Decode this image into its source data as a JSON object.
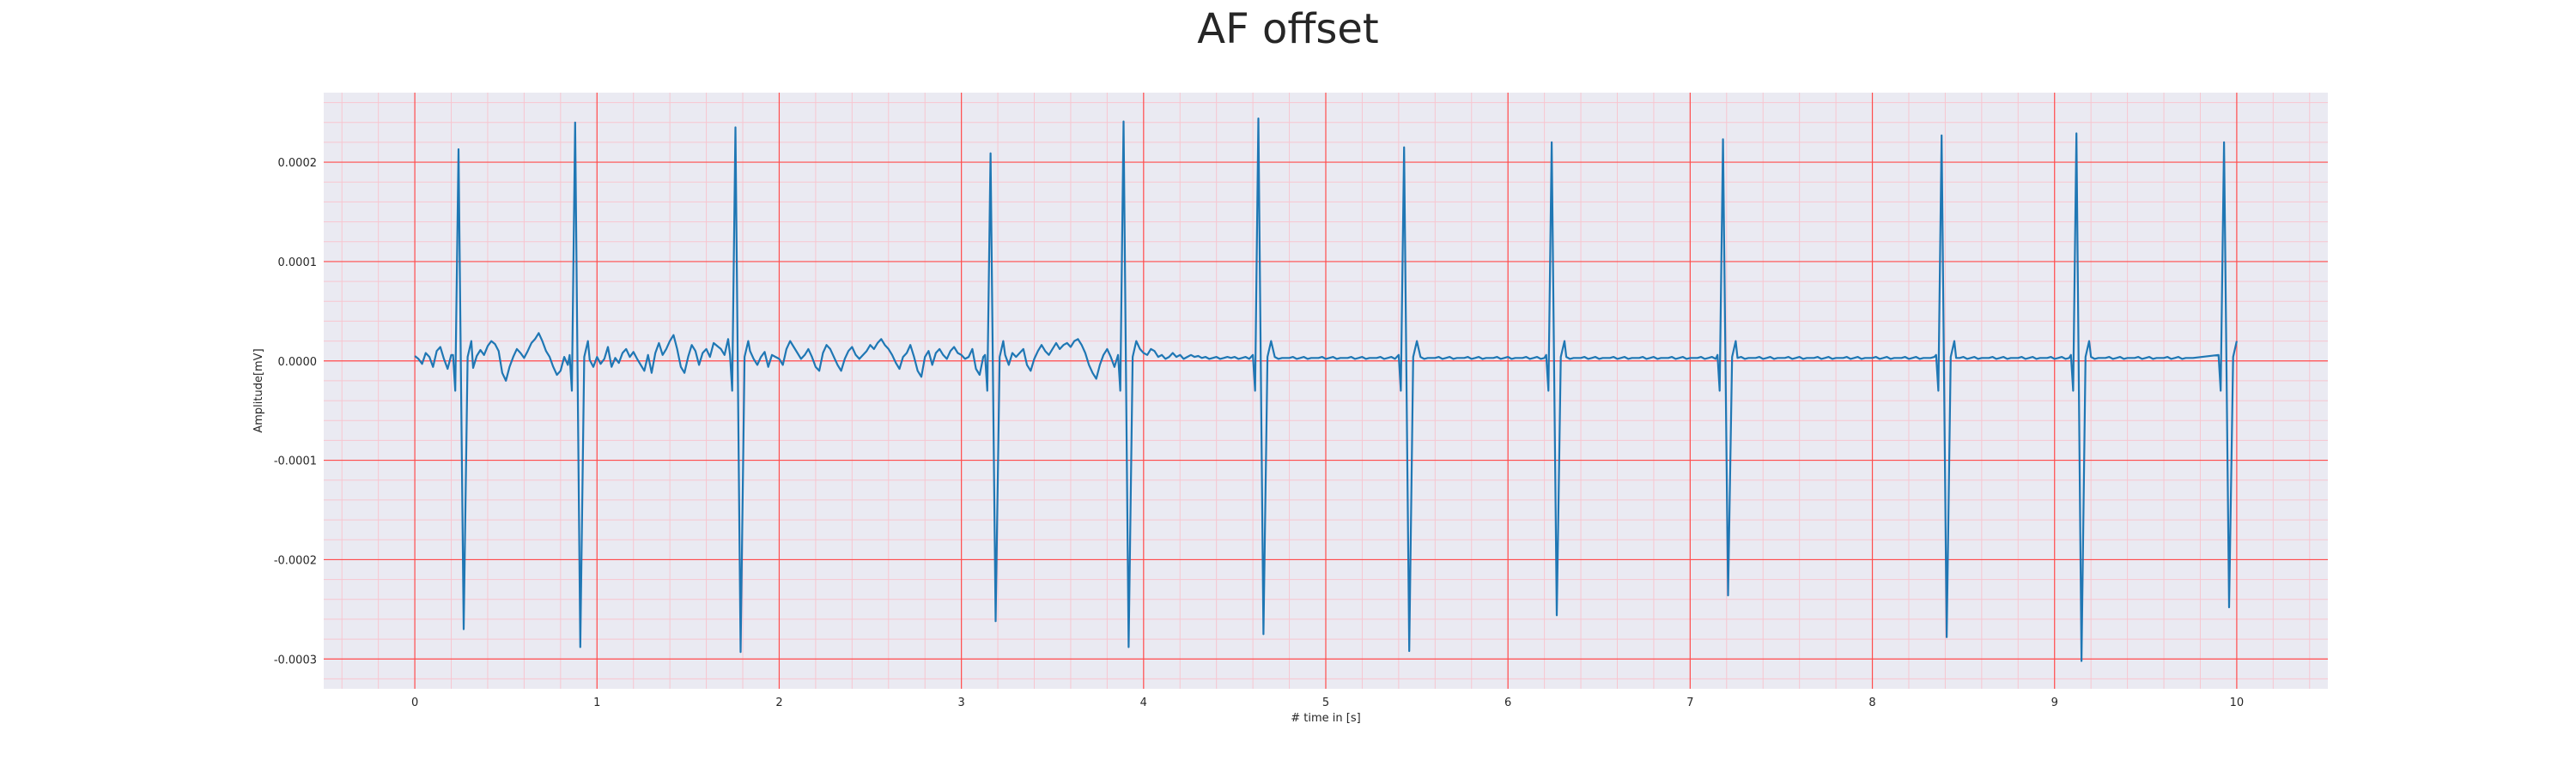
{
  "chart_data": {
    "type": "line",
    "title": "AF offset",
    "xlabel": "# time in [s]",
    "ylabel": "Amplitude[mV]",
    "xlim": [
      -0.5,
      10.5
    ],
    "ylim": [
      -0.00033,
      0.00027
    ],
    "x_ticks": [
      0,
      1,
      2,
      3,
      4,
      5,
      6,
      7,
      8,
      9,
      10
    ],
    "x_tick_labels": [
      "0",
      "1",
      "2",
      "3",
      "4",
      "5",
      "6",
      "7",
      "8",
      "9",
      "10"
    ],
    "y_ticks": [
      -0.0003,
      -0.0002,
      -0.0001,
      0.0,
      0.0001,
      0.0002
    ],
    "y_tick_labels": [
      "-0.0003",
      "-0.0002",
      "-0.0001",
      "0.0000",
      "0.0001",
      "0.0002"
    ],
    "grid": true,
    "minor_grid": true,
    "background_color": "#eaeaf2",
    "major_grid_color": "#ff4d4d",
    "minor_grid_color": "#f7c6d0",
    "series": [
      {
        "color": "#1f77b4",
        "sample_interval": 0.02,
        "x_start": 0.0,
        "beats": [
          {
            "t": 0.24,
            "peak": 0.000213,
            "trough": -0.00027
          },
          {
            "t": 0.88,
            "peak": 0.00024,
            "trough": -0.000288
          },
          {
            "t": 1.76,
            "peak": 0.000235,
            "trough": -0.000293
          },
          {
            "t": 3.16,
            "peak": 0.000209,
            "trough": -0.000262
          },
          {
            "t": 3.89,
            "peak": 0.000241,
            "trough": -0.000288
          },
          {
            "t": 4.63,
            "peak": 0.000244,
            "trough": -0.000275
          },
          {
            "t": 5.43,
            "peak": 0.000215,
            "trough": -0.000292
          },
          {
            "t": 6.24,
            "peak": 0.00022,
            "trough": -0.000256
          },
          {
            "t": 7.18,
            "peak": 0.000223,
            "trough": -0.000236
          },
          {
            "t": 8.38,
            "peak": 0.000227,
            "trough": -0.000278
          },
          {
            "t": 9.12,
            "peak": 0.000229,
            "trough": -0.000302
          },
          {
            "t": 9.93,
            "peak": 0.00022,
            "trough": -0.000248
          }
        ],
        "baseline": [
          5e-06,
          2e-06,
          -3e-06,
          8e-06,
          4e-06,
          -6e-06,
          1e-05,
          1.4e-05,
          2e-06,
          -8e-06,
          6e-06,
          1.2e-05,
          3e-06,
          -2e-06,
          9e-06,
          4e-06,
          -7e-06,
          5e-06,
          1.1e-05,
          6e-06,
          1.5e-05,
          2e-05,
          1.7e-05,
          1e-05,
          -1.2e-05,
          -2e-05,
          -6e-06,
          4e-06,
          1.2e-05,
          8e-06,
          3e-06,
          1e-05,
          1.8e-05,
          2.2e-05,
          2.8e-05,
          2e-05,
          1e-05,
          4e-06,
          -6e-06,
          -1.4e-05,
          -1e-05,
          4e-06,
          -4e-06,
          2e-06,
          -8e-06,
          6e-06,
          -2e-06,
          5e-06,
          1e-06,
          -6e-06,
          4e-06,
          -3e-06,
          2e-06,
          1.4e-05,
          -6e-06,
          3e-06,
          -2e-06,
          8e-06,
          1.2e-05,
          4e-06,
          9e-06,
          2e-06,
          -4e-06,
          -1e-05,
          6e-06,
          -1.2e-05,
          8e-06,
          1.8e-05,
          6e-06,
          1.2e-05,
          2e-05,
          2.6e-05,
          1.2e-05,
          -6e-06,
          -1.2e-05,
          4e-06,
          1.6e-05,
          1e-05,
          -4e-06,
          8e-06,
          1.2e-05,
          4e-06,
          1.8e-05,
          1.5e-05,
          1.2e-05,
          6e-06,
          2.2e-05,
          1e-05,
          -1e-05,
          -1.4e-05,
          4e-06,
          1.6e-05,
          1e-05,
          2e-06,
          -4e-06,
          4e-06,
          9e-06,
          -6e-06,
          6e-06,
          4e-06,
          2e-06,
          -4e-06,
          1.2e-05,
          2e-05,
          1.4e-05,
          8e-06,
          2e-06,
          6e-06,
          1.2e-05,
          4e-06,
          -6e-06,
          -1e-05,
          8e-06,
          1.6e-05,
          1.2e-05,
          4e-06,
          -4e-06,
          -1e-05,
          2e-06,
          1e-05,
          1.4e-05,
          6e-06,
          2e-06,
          6e-06,
          1e-05,
          1.6e-05,
          1.2e-05,
          1.8e-05,
          2.2e-05,
          1.6e-05,
          1.2e-05,
          6e-06,
          -2e-06,
          -8e-06,
          4e-06,
          8e-06,
          1.6e-05,
          4e-06,
          -1e-05,
          -1.6e-05,
          4e-06,
          1e-05,
          -4e-06,
          8e-06,
          1.2e-05,
          6e-06,
          2e-06,
          1e-05,
          1.4e-05,
          8e-06,
          6e-06,
          2e-06,
          4e-06,
          1.2e-05,
          -8e-06,
          -1.4e-05,
          4e-06,
          1e-05,
          1.4e-05,
          6e-06,
          4e-06,
          1e-05,
          6e-06,
          -4e-06,
          8e-06,
          4e-06,
          8e-06,
          1.2e-05,
          -4e-06,
          -1e-05,
          2e-06,
          1e-05,
          1.6e-05,
          1e-05,
          6e-06,
          1.2e-05,
          1.8e-05,
          1.2e-05,
          1.6e-05,
          1.8e-05,
          1.4e-05,
          2e-05,
          2.2e-05,
          1.6e-05,
          8e-06,
          -4e-06,
          -1.2e-05,
          -1.8e-05,
          -4e-06,
          6e-06,
          1.2e-05,
          4e-06,
          -6e-06,
          2e-06,
          1e-05,
          1.4e-05,
          8e-06,
          4e-06,
          1e-05,
          1.2e-05,
          8e-06,
          6e-06,
          1.2e-05,
          1e-05,
          4e-06,
          6e-06,
          2e-06,
          4e-06,
          8e-06,
          4e-06,
          6e-06,
          2e-06,
          4e-06,
          6e-06,
          4e-06,
          5e-06,
          3e-06,
          4e-06,
          2e-06,
          3e-06,
          4e-06,
          2e-06,
          3e-06,
          4e-06,
          3e-06,
          4e-06,
          2e-06,
          3e-06,
          4e-06,
          2e-06,
          3e-06,
          3e-06,
          3e-06,
          4e-06,
          2e-06,
          3e-06,
          4e-06,
          2e-06,
          3e-06,
          3e-06,
          3e-06,
          4e-06,
          2e-06,
          3e-06,
          4e-06,
          2e-06,
          3e-06,
          3e-06,
          3e-06,
          4e-06,
          2e-06,
          3e-06,
          4e-06,
          2e-06,
          3e-06,
          3e-06,
          3e-06,
          4e-06,
          2e-06,
          3e-06,
          4e-06,
          2e-06,
          3e-06,
          3e-06,
          3e-06,
          4e-06,
          2e-06,
          3e-06,
          4e-06,
          2e-06,
          3e-06,
          3e-06,
          3e-06,
          4e-06,
          2e-06,
          3e-06,
          4e-06,
          2e-06,
          3e-06,
          3e-06,
          3e-06,
          4e-06,
          2e-06,
          3e-06,
          4e-06,
          2e-06,
          3e-06,
          3e-06,
          3e-06,
          4e-06,
          2e-06,
          3e-06,
          4e-06,
          2e-06,
          3e-06,
          3e-06,
          3e-06,
          4e-06,
          2e-06,
          3e-06,
          4e-06,
          2e-06,
          3e-06,
          3e-06,
          3e-06,
          4e-06,
          2e-06,
          3e-06,
          4e-06,
          2e-06,
          3e-06,
          3e-06,
          3e-06,
          4e-06,
          2e-06,
          3e-06,
          4e-06,
          2e-06,
          3e-06,
          3e-06,
          3e-06,
          4e-06,
          2e-06,
          3e-06,
          4e-06,
          2e-06,
          3e-06,
          3e-06,
          3e-06,
          4e-06,
          2e-06,
          3e-06,
          4e-06,
          2e-06,
          3e-06,
          3e-06,
          3e-06,
          4e-06,
          2e-06,
          3e-06,
          4e-06,
          2e-06,
          3e-06,
          3e-06,
          3e-06,
          4e-06,
          2e-06,
          3e-06,
          4e-06,
          2e-06,
          3e-06,
          3e-06,
          3e-06,
          4e-06,
          2e-06,
          3e-06,
          4e-06,
          2e-06,
          3e-06,
          3e-06,
          3e-06,
          4e-06,
          2e-06,
          3e-06,
          4e-06,
          2e-06,
          3e-06,
          3e-06,
          3e-06,
          4e-06,
          2e-06,
          3e-06,
          4e-06,
          2e-06,
          3e-06,
          3e-06,
          3e-06,
          4e-06,
          2e-06,
          3e-06,
          4e-06,
          2e-06,
          3e-06,
          3e-06,
          3e-06,
          4e-06,
          2e-06,
          3e-06,
          4e-06,
          2e-06,
          3e-06,
          3e-06,
          3e-06,
          4e-06,
          2e-06,
          3e-06,
          4e-06,
          2e-06,
          3e-06,
          3e-06,
          3e-06,
          4e-06,
          2e-06,
          3e-06,
          4e-06,
          2e-06,
          3e-06,
          3e-06,
          3e-06,
          4e-06,
          2e-06,
          3e-06,
          4e-06,
          2e-06,
          3e-06,
          3e-06,
          3e-06,
          4e-06,
          2e-06,
          3e-06,
          4e-06,
          2e-06,
          3e-06,
          3e-06,
          3e-06,
          4e-06,
          2e-06,
          3e-06,
          4e-06,
          2e-06,
          3e-06,
          3e-06,
          3e-06,
          4e-06,
          2e-06,
          3e-06,
          4e-06,
          2e-06,
          3e-06,
          3e-06,
          3e-06,
          4e-06,
          2e-06,
          3e-06,
          4e-06,
          2e-06,
          3e-06,
          3e-06,
          3e-06,
          4e-06,
          2e-06,
          3e-06,
          4e-06,
          2e-06,
          3e-06,
          3e-06,
          3e-06,
          4e-06,
          2e-06,
          3e-06,
          4e-06,
          2e-06,
          3e-06,
          3e-06,
          3e-06,
          4e-06,
          2e-06,
          3e-06,
          4e-06,
          2e-06,
          3e-06,
          3e-06,
          3e-06,
          4e-06,
          2e-06,
          3e-06,
          4e-06,
          2e-06,
          3e-06,
          3e-06,
          3e-06,
          4e-06,
          2e-06,
          3e-06,
          4e-06,
          2e-06,
          3e-06,
          3e-06,
          3e-06
        ]
      }
    ]
  }
}
